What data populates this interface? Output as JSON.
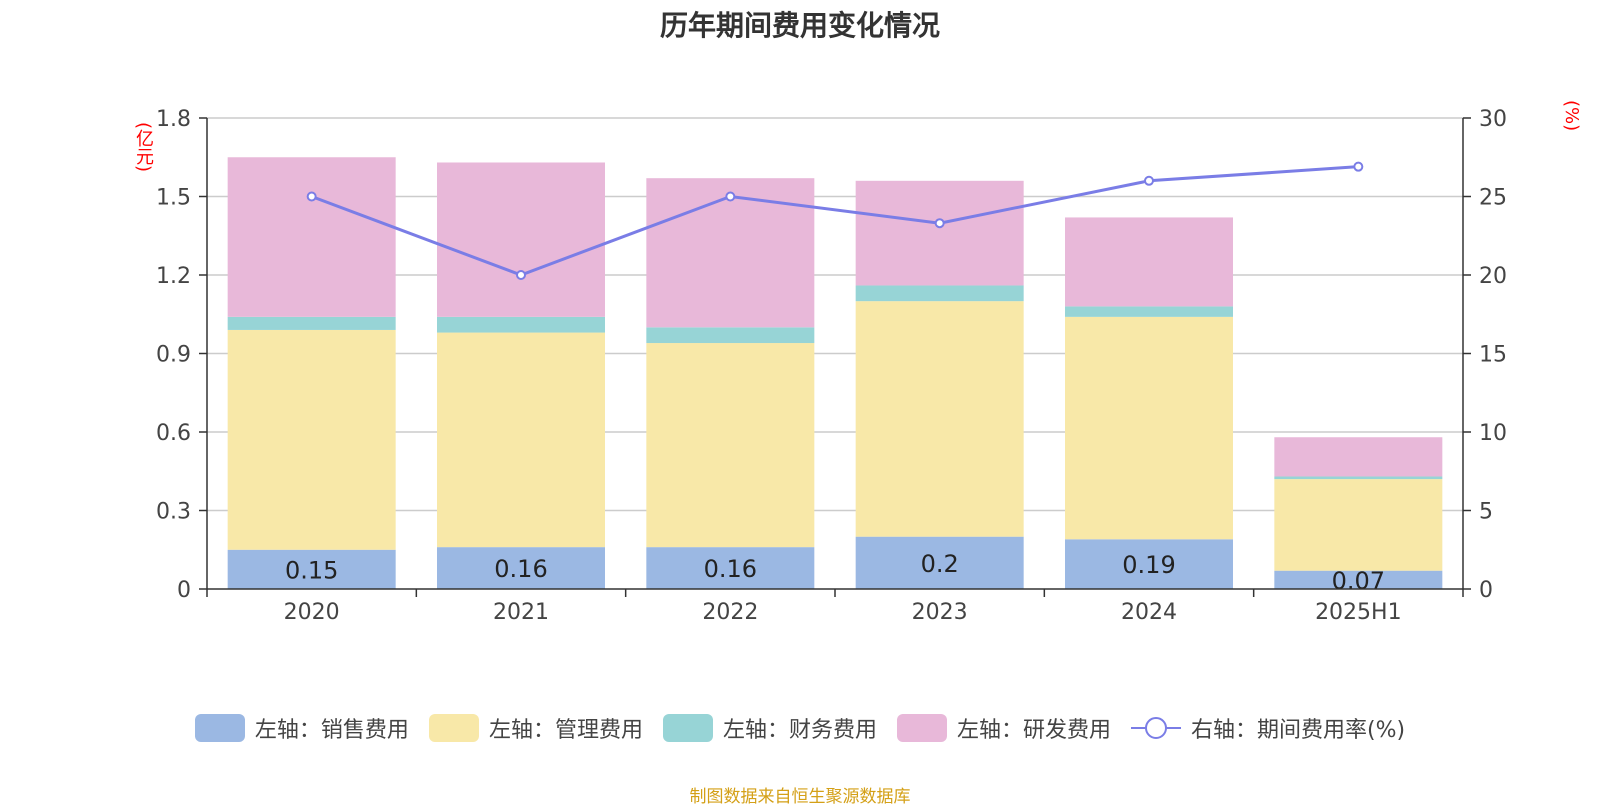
{
  "chart_data": {
    "type": "bar",
    "title": "历年期间费用变化情况",
    "categories": [
      "2020",
      "2021",
      "2022",
      "2023",
      "2024",
      "2025H1"
    ],
    "left_unit": "(亿元)",
    "right_unit": "(%)",
    "left_axis": {
      "ylim": [
        0,
        1.8
      ],
      "ticks": [
        "0",
        "0.3",
        "0.6",
        "0.9",
        "1.2",
        "1.5",
        "1.8"
      ]
    },
    "right_axis": {
      "ylim": [
        0,
        30
      ],
      "ticks": [
        "0",
        "5",
        "10",
        "15",
        "20",
        "25",
        "30"
      ]
    },
    "series": [
      {
        "name": "左轴：销售费用",
        "type": "bar",
        "axis": "left",
        "color": "#9bb8e3",
        "values": [
          0.15,
          0.16,
          0.16,
          0.2,
          0.19,
          0.07
        ],
        "labels": [
          "0.15",
          "0.16",
          "0.16",
          "0.2",
          "0.19",
          "0.07"
        ]
      },
      {
        "name": "左轴：管理费用",
        "type": "bar",
        "axis": "left",
        "color": "#f8e8a8",
        "values": [
          0.84,
          0.82,
          0.78,
          0.9,
          0.85,
          0.35
        ]
      },
      {
        "name": "左轴：财务费用",
        "type": "bar",
        "axis": "left",
        "color": "#97d4d6",
        "values": [
          0.05,
          0.06,
          0.06,
          0.06,
          0.04,
          0.01
        ]
      },
      {
        "name": "左轴：研发费用",
        "type": "bar",
        "axis": "left",
        "color": "#e8b8d9",
        "values": [
          0.61,
          0.59,
          0.57,
          0.4,
          0.34,
          0.15
        ]
      },
      {
        "name": "右轴：期间费用率(%)",
        "type": "line",
        "axis": "right",
        "color": "#7a7de6",
        "values": [
          25.0,
          20.0,
          25.0,
          23.3,
          26.0,
          26.9
        ]
      }
    ],
    "grid": true,
    "legend_position": "bottom"
  },
  "source_note": "制图数据来自恒生聚源数据库"
}
